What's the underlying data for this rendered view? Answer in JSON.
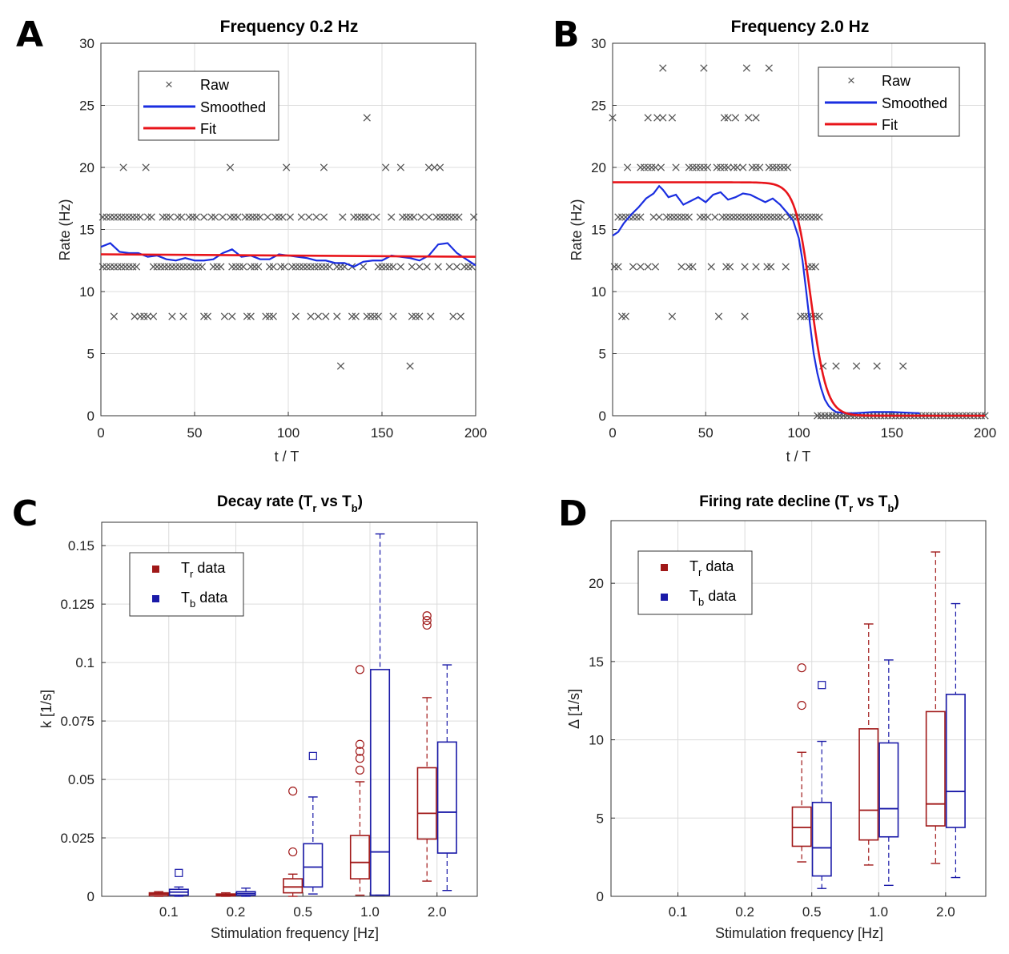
{
  "panels": {
    "A": {
      "letter": "A",
      "title": "Frequency 0.2 Hz",
      "xlabel": "t / T",
      "ylabel": "Rate (Hz)"
    },
    "B": {
      "letter": "B",
      "title": "Frequency 2.0 Hz",
      "xlabel": "t / T",
      "ylabel": "Rate (Hz)"
    },
    "C": {
      "letter": "C",
      "title_main": "Decay rate (T",
      "title_sub1": "r",
      "title_mid": " vs T",
      "title_sub2": "b",
      "title_end": ")",
      "xlabel": "Stimulation frequency [Hz]",
      "ylabel": "k [1/s]"
    },
    "D": {
      "letter": "D",
      "title_main": "Firing rate decline (T",
      "title_sub1": "r",
      "title_mid": " vs T",
      "title_sub2": "b",
      "title_end": ")",
      "xlabel": "Stimulation frequency [Hz]",
      "ylabel": "Δ [1/s]"
    }
  },
  "legend_ab": {
    "raw": "Raw",
    "smoothed": "Smoothed",
    "fit": "Fit"
  },
  "legend_cd": {
    "tr_main": "T",
    "tr_sub": "r",
    "tr_suffix": " data",
    "tb_main": "T",
    "tb_sub": "b",
    "tb_suffix": " data"
  },
  "colors": {
    "raw": "#555555",
    "smoothed": "#1a2ee0",
    "fit": "#e8141a",
    "tr": "#a01818",
    "tb": "#1a1aa8"
  },
  "chart_data": [
    {
      "id": "A",
      "type": "scatter",
      "title": "Frequency 0.2 Hz",
      "xlabel": "t / T",
      "ylabel": "Rate (Hz)",
      "xlim": [
        0,
        200
      ],
      "ylim": [
        0,
        30
      ],
      "xticks": [
        0,
        50,
        100,
        150,
        200
      ],
      "yticks": [
        0,
        5,
        10,
        15,
        20,
        25,
        30
      ],
      "raw_levels": [
        {
          "y": 4,
          "x": [
            128,
            165
          ]
        },
        {
          "y": 8,
          "x": [
            7,
            18,
            21,
            23,
            25,
            28,
            38,
            44,
            55,
            57,
            66,
            70,
            78,
            80,
            88,
            90,
            92,
            104,
            112,
            116,
            120,
            126,
            134,
            136,
            142,
            144,
            146,
            148,
            156,
            166,
            168,
            170,
            176,
            188,
            192
          ]
        },
        {
          "y": 12,
          "x": [
            1,
            3,
            5,
            7,
            9,
            11,
            13,
            15,
            17,
            19,
            28,
            30,
            32,
            34,
            36,
            38,
            40,
            42,
            44,
            46,
            48,
            50,
            52,
            54,
            60,
            62,
            64,
            70,
            72,
            74,
            76,
            80,
            82,
            84,
            90,
            92,
            96,
            98,
            102,
            104,
            106,
            108,
            110,
            112,
            114,
            116,
            118,
            120,
            122,
            126,
            128,
            130,
            134,
            140,
            148,
            150,
            152,
            154,
            156,
            160,
            166,
            170,
            174,
            180,
            186,
            190,
            194,
            196,
            198
          ]
        },
        {
          "y": 16,
          "x": [
            1,
            3,
            5,
            7,
            9,
            11,
            13,
            15,
            17,
            19,
            21,
            25,
            27,
            33,
            35,
            37,
            41,
            43,
            47,
            49,
            51,
            55,
            59,
            61,
            65,
            69,
            71,
            73,
            77,
            79,
            81,
            83,
            85,
            89,
            93,
            95,
            97,
            101,
            107,
            111,
            115,
            119,
            129,
            135,
            137,
            139,
            141,
            143,
            147,
            155,
            161,
            163,
            165,
            167,
            171,
            175,
            179,
            181,
            183,
            185,
            187,
            189,
            191,
            199
          ]
        },
        {
          "y": 20,
          "x": [
            12,
            24,
            69,
            99,
            119,
            152,
            160,
            175,
            178,
            181
          ]
        },
        {
          "y": 24,
          "x": [
            142
          ]
        }
      ],
      "smoothed": {
        "x": [
          0,
          5,
          10,
          15,
          20,
          25,
          30,
          35,
          40,
          45,
          50,
          55,
          60,
          65,
          70,
          75,
          80,
          85,
          90,
          95,
          100,
          105,
          110,
          115,
          120,
          125,
          130,
          135,
          140,
          145,
          150,
          155,
          160,
          165,
          170,
          175,
          180,
          185,
          190,
          195,
          200
        ],
        "y": [
          13.6,
          13.9,
          13.2,
          13.1,
          13.1,
          12.8,
          12.9,
          12.6,
          12.5,
          12.7,
          12.5,
          12.5,
          12.6,
          13.1,
          13.4,
          12.8,
          12.9,
          12.6,
          12.6,
          13.0,
          12.9,
          12.8,
          12.7,
          12.5,
          12.5,
          12.3,
          12.3,
          12.0,
          12.4,
          12.5,
          12.5,
          12.9,
          12.8,
          12.7,
          12.5,
          12.9,
          13.8,
          13.9,
          13.1,
          12.6,
          12.1
        ]
      },
      "fit": {
        "x": [
          0,
          200
        ],
        "y": [
          13.0,
          12.8
        ]
      }
    },
    {
      "id": "B",
      "type": "scatter",
      "title": "Frequency 2.0 Hz",
      "xlabel": "t / T",
      "ylabel": "Rate (Hz)",
      "xlim": [
        0,
        200
      ],
      "ylim": [
        0,
        30
      ],
      "xticks": [
        0,
        50,
        100,
        150,
        200
      ],
      "yticks": [
        0,
        5,
        10,
        15,
        20,
        25,
        30
      ],
      "raw_levels": [
        {
          "y": 0,
          "x": [
            110,
            112,
            114,
            116,
            118,
            120,
            122,
            124,
            126,
            128,
            130,
            132,
            134,
            136,
            138,
            140,
            142,
            144,
            146,
            148,
            150,
            152,
            154,
            156,
            158,
            160,
            162,
            164,
            166,
            168,
            170,
            172,
            174,
            176,
            178,
            180,
            182,
            184,
            186,
            188,
            190,
            192,
            194,
            196,
            198,
            200
          ]
        },
        {
          "y": 4,
          "x": [
            113,
            120,
            131,
            142,
            156
          ]
        },
        {
          "y": 8,
          "x": [
            5,
            7,
            32,
            57,
            71,
            101,
            103,
            105,
            107,
            109,
            111
          ]
        },
        {
          "y": 12,
          "x": [
            1,
            3,
            11,
            15,
            19,
            23,
            37,
            41,
            43,
            53,
            61,
            63,
            71,
            77,
            83,
            85,
            93,
            105,
            107,
            109
          ]
        },
        {
          "y": 16,
          "x": [
            3,
            5,
            7,
            9,
            11,
            13,
            15,
            22,
            25,
            29,
            31,
            33,
            35,
            37,
            39,
            41,
            47,
            49,
            51,
            55,
            59,
            61,
            63,
            65,
            67,
            69,
            71,
            73,
            75,
            77,
            79,
            81,
            83,
            85,
            87,
            89,
            91,
            95,
            97,
            99,
            101,
            103,
            105,
            107,
            109,
            111
          ]
        },
        {
          "y": 20,
          "x": [
            8,
            15,
            17,
            19,
            21,
            23,
            26,
            34,
            41,
            43,
            45,
            47,
            49,
            51,
            56,
            58,
            60,
            62,
            65,
            67,
            70,
            75,
            77,
            79,
            84,
            86,
            88,
            90,
            92,
            94
          ]
        },
        {
          "y": 24,
          "x": [
            0,
            19,
            24,
            27,
            32,
            60,
            62,
            66,
            73,
            77
          ]
        },
        {
          "y": 28,
          "x": [
            27,
            49,
            72,
            84
          ]
        }
      ],
      "smoothed": {
        "x": [
          0,
          3,
          6,
          10,
          14,
          18,
          22,
          25,
          27,
          30,
          34,
          38,
          42,
          46,
          50,
          54,
          58,
          62,
          66,
          70,
          74,
          78,
          82,
          86,
          90,
          94,
          97,
          100,
          102,
          104,
          106,
          108,
          110,
          112,
          114,
          116,
          118,
          120,
          125,
          130,
          140,
          150,
          165
        ],
        "y": [
          14.5,
          14.8,
          15.5,
          16.2,
          16.8,
          17.5,
          17.9,
          18.5,
          18.2,
          17.6,
          17.8,
          17.0,
          17.3,
          17.6,
          17.2,
          17.8,
          18.0,
          17.4,
          17.6,
          17.9,
          17.8,
          17.5,
          17.2,
          17.5,
          17.0,
          16.3,
          15.7,
          14.3,
          12.5,
          10.0,
          7.4,
          5.0,
          3.4,
          2.2,
          1.3,
          0.8,
          0.5,
          0.3,
          0.2,
          0.2,
          0.3,
          0.3,
          0.2
        ]
      },
      "fit": {
        "type": "sigmoid",
        "top": 18.8,
        "x0": 106.5,
        "slope": 4.2,
        "range": [
          0,
          200
        ]
      }
    },
    {
      "id": "C",
      "type": "box",
      "title": "Decay rate (Tr vs Tb)",
      "xlabel": "Stimulation frequency [Hz]",
      "ylabel": "k [1/s]",
      "categories": [
        "0.1",
        "0.2",
        "0.5",
        "1.0",
        "2.0"
      ],
      "ylim": [
        0,
        0.16
      ],
      "yticks": [
        0,
        0.025,
        0.05,
        0.075,
        0.1,
        0.125,
        0.15
      ],
      "ytick_labels": [
        "0",
        "0.025",
        "0.05",
        "0.075",
        "0.1",
        "0.125",
        "0.15"
      ],
      "series": [
        {
          "name": "Tr data",
          "boxes": [
            {
              "lo": 0,
              "q1": 0.0003,
              "med": 0.001,
              "q3": 0.0015,
              "hi": 0.002,
              "out": []
            },
            {
              "lo": 0,
              "q1": 0.0002,
              "med": 0.0006,
              "q3": 0.001,
              "hi": 0.0015,
              "out": []
            },
            {
              "lo": 0,
              "q1": 0.0015,
              "med": 0.004,
              "q3": 0.0075,
              "hi": 0.0095,
              "out": [
                0.019,
                0.045
              ]
            },
            {
              "lo": 0.0005,
              "q1": 0.0075,
              "med": 0.0145,
              "q3": 0.026,
              "hi": 0.049,
              "out": [
                0.054,
                0.059,
                0.062,
                0.065,
                0.097
              ]
            },
            {
              "lo": 0.0065,
              "q1": 0.0245,
              "med": 0.0355,
              "q3": 0.055,
              "hi": 0.085,
              "out": [
                0.116,
                0.118,
                0.12
              ]
            }
          ]
        },
        {
          "name": "Tb data",
          "boxes": [
            {
              "lo": 0,
              "q1": 0.0005,
              "med": 0.0018,
              "q3": 0.003,
              "hi": 0.004,
              "out": [
                0.01
              ]
            },
            {
              "lo": 0,
              "q1": 0.0005,
              "med": 0.0012,
              "q3": 0.002,
              "hi": 0.0035,
              "out": []
            },
            {
              "lo": 0.001,
              "q1": 0.004,
              "med": 0.0125,
              "q3": 0.0225,
              "hi": 0.0425,
              "out": [
                0.06
              ]
            },
            {
              "lo": 0.0005,
              "q1": 0.0005,
              "med": 0.019,
              "q3": 0.097,
              "hi": 0.155,
              "out": []
            },
            {
              "lo": 0.0025,
              "q1": 0.0185,
              "med": 0.036,
              "q3": 0.066,
              "hi": 0.099,
              "out": []
            }
          ]
        }
      ]
    },
    {
      "id": "D",
      "type": "box",
      "title": "Firing rate decline (Tr vs Tb)",
      "xlabel": "Stimulation frequency [Hz]",
      "ylabel": "Δ [1/s]",
      "categories": [
        "0.1",
        "0.2",
        "0.5",
        "1.0",
        "2.0"
      ],
      "ylim": [
        0,
        24
      ],
      "yticks": [
        0,
        5,
        10,
        15,
        20
      ],
      "ytick_labels": [
        "0",
        "5",
        "10",
        "15",
        "20"
      ],
      "series": [
        {
          "name": "Tr data",
          "boxes": [
            null,
            null,
            {
              "lo": 2.2,
              "q1": 3.2,
              "med": 4.4,
              "q3": 5.7,
              "hi": 9.2,
              "out": [
                12.2,
                14.6
              ]
            },
            {
              "lo": 2.0,
              "q1": 3.6,
              "med": 5.5,
              "q3": 10.7,
              "hi": 17.4,
              "out": []
            },
            {
              "lo": 2.1,
              "q1": 4.5,
              "med": 5.9,
              "q3": 11.8,
              "hi": 22.0,
              "out": []
            }
          ]
        },
        {
          "name": "Tb data",
          "boxes": [
            null,
            null,
            {
              "lo": 0.5,
              "q1": 1.3,
              "med": 3.1,
              "q3": 6.0,
              "hi": 9.9,
              "out": [
                13.5
              ]
            },
            {
              "lo": 0.7,
              "q1": 3.8,
              "med": 5.6,
              "q3": 9.8,
              "hi": 15.1,
              "out": []
            },
            {
              "lo": 1.2,
              "q1": 4.4,
              "med": 6.7,
              "q3": 12.9,
              "hi": 18.7,
              "out": []
            }
          ]
        }
      ]
    }
  ]
}
